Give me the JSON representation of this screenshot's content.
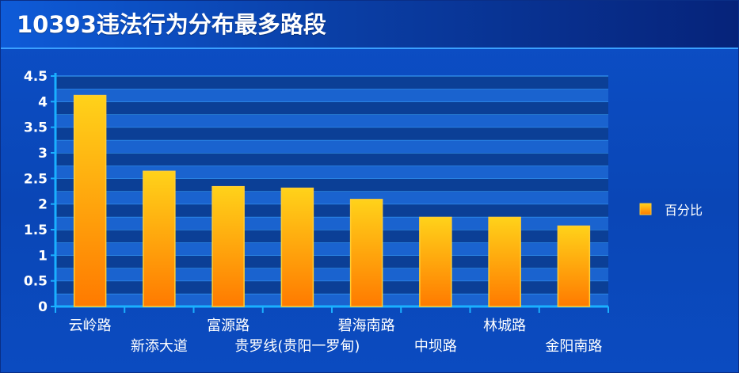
{
  "title": "10393违法行为分布最多路段",
  "chart_data": {
    "type": "bar",
    "categories": [
      "云岭路",
      "新添大道",
      "富源路",
      "贵罗线(贵阳一罗甸)",
      "碧海南路",
      "中坝路",
      "林城路",
      "金阳南路"
    ],
    "series": [
      {
        "name": "百分比",
        "values": [
          4.12,
          2.64,
          2.34,
          2.31,
          2.09,
          1.74,
          1.74,
          1.57
        ]
      }
    ],
    "yticks": [
      "0",
      "0.5",
      "1",
      "1.5",
      "2",
      "2.5",
      "3",
      "3.5",
      "4",
      "4.5"
    ],
    "ylim": [
      0,
      4.5
    ],
    "grid": true,
    "legend_position": "right",
    "colors": {
      "bar_top": "#ffd21a",
      "bar_bottom": "#ff7a00",
      "bar_border": "#ffcc33",
      "plot_band_light": "#1a63cf",
      "plot_band_dark": "#0b3f96",
      "grid": "#3ea8ff",
      "axis": "#1ab0ff"
    }
  }
}
